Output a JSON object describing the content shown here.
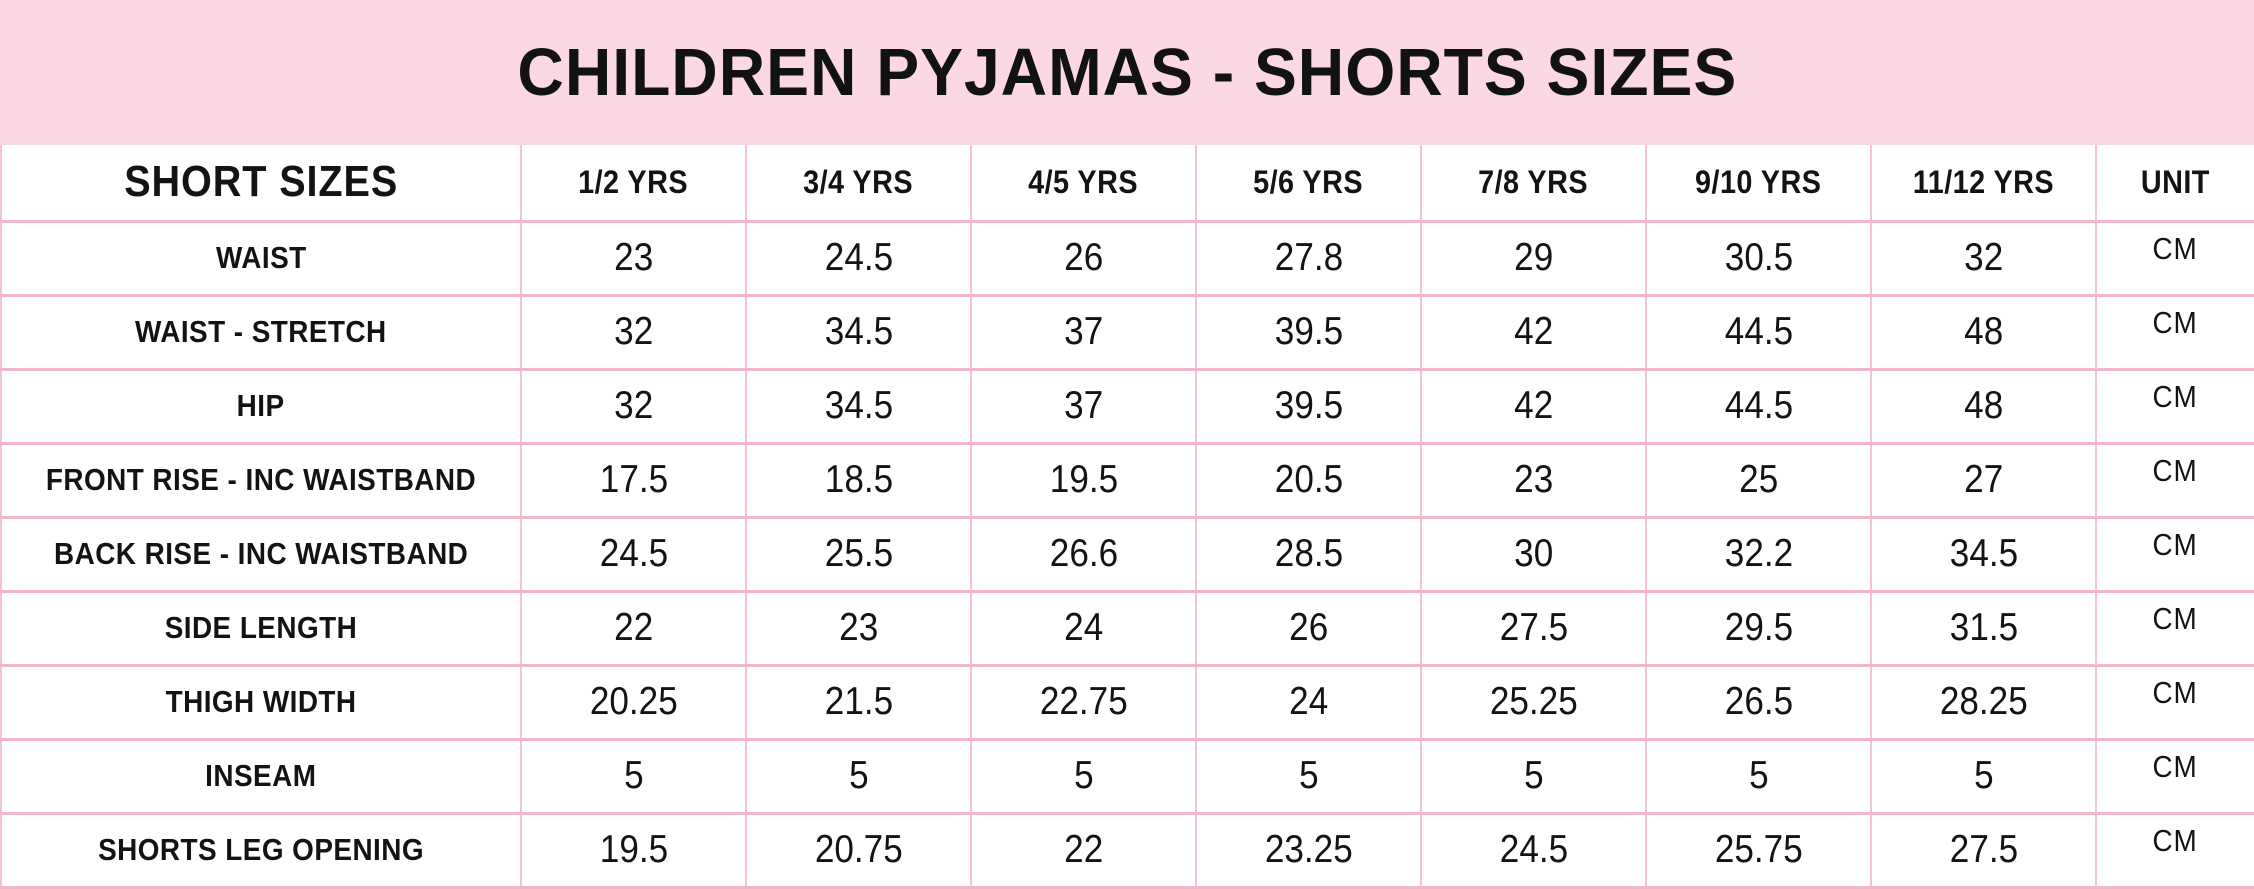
{
  "title": "CHILDREN PYJAMAS - SHORTS SIZES",
  "colors": {
    "banner_pink": "#fcd8e2",
    "grid_pink": "#f4bcd0",
    "text": "#131313",
    "background": "#ffffff"
  },
  "table": {
    "columns": [
      "SHORT SIZES",
      "1/2 YRS",
      "3/4 YRS",
      "4/5 YRS",
      "5/6 YRS",
      "7/8 YRS",
      "9/10 YRS",
      "11/12 YRS",
      "UNIT"
    ],
    "rows": [
      {
        "label": "WAIST",
        "values": [
          "23",
          "24.5",
          "26",
          "27.8",
          "29",
          "30.5",
          "32"
        ],
        "unit": "CM"
      },
      {
        "label": "WAIST - STRETCH",
        "values": [
          "32",
          "34.5",
          "37",
          "39.5",
          "42",
          "44.5",
          "48"
        ],
        "unit": "CM"
      },
      {
        "label": "HIP",
        "values": [
          "32",
          "34.5",
          "37",
          "39.5",
          "42",
          "44.5",
          "48"
        ],
        "unit": "CM"
      },
      {
        "label": "FRONT RISE - INC WAISTBAND",
        "values": [
          "17.5",
          "18.5",
          "19.5",
          "20.5",
          "23",
          "25",
          "27"
        ],
        "unit": "CM"
      },
      {
        "label": "BACK RISE - INC WAISTBAND",
        "values": [
          "24.5",
          "25.5",
          "26.6",
          "28.5",
          "30",
          "32.2",
          "34.5"
        ],
        "unit": "CM"
      },
      {
        "label": "SIDE LENGTH",
        "values": [
          "22",
          "23",
          "24",
          "26",
          "27.5",
          "29.5",
          "31.5"
        ],
        "unit": "CM"
      },
      {
        "label": "THIGH WIDTH",
        "values": [
          "20.25",
          "21.5",
          "22.75",
          "24",
          "25.25",
          "26.5",
          "28.25"
        ],
        "unit": "CM"
      },
      {
        "label": "INSEAM",
        "values": [
          "5",
          "5",
          "5",
          "5",
          "5",
          "5",
          "5"
        ],
        "unit": "CM"
      },
      {
        "label": "SHORTS LEG OPENING",
        "values": [
          "19.5",
          "20.75",
          "22",
          "23.25",
          "24.5",
          "25.75",
          "27.5"
        ],
        "unit": "CM"
      }
    ]
  },
  "chart_data": {
    "type": "table",
    "title": "CHILDREN PYJAMAS - SHORTS SIZES",
    "columns": [
      "SHORT SIZES",
      "1/2 YRS",
      "3/4 YRS",
      "4/5 YRS",
      "5/6 YRS",
      "7/8 YRS",
      "9/10 YRS",
      "11/12 YRS",
      "UNIT"
    ],
    "rows": [
      [
        "WAIST",
        23,
        24.5,
        26,
        27.8,
        29,
        30.5,
        32,
        "CM"
      ],
      [
        "WAIST - STRETCH",
        32,
        34.5,
        37,
        39.5,
        42,
        44.5,
        48,
        "CM"
      ],
      [
        "HIP",
        32,
        34.5,
        37,
        39.5,
        42,
        44.5,
        48,
        "CM"
      ],
      [
        "FRONT RISE - INC WAISTBAND",
        17.5,
        18.5,
        19.5,
        20.5,
        23,
        25,
        27,
        "CM"
      ],
      [
        "BACK RISE - INC WAISTBAND",
        24.5,
        25.5,
        26.6,
        28.5,
        30,
        32.2,
        34.5,
        "CM"
      ],
      [
        "SIDE LENGTH",
        22,
        23,
        24,
        26,
        27.5,
        29.5,
        31.5,
        "CM"
      ],
      [
        "THIGH WIDTH",
        20.25,
        21.5,
        22.75,
        24,
        25.25,
        26.5,
        28.25,
        "CM"
      ],
      [
        "INSEAM",
        5,
        5,
        5,
        5,
        5,
        5,
        5,
        "CM"
      ],
      [
        "SHORTS LEG OPENING",
        19.5,
        20.75,
        22,
        23.25,
        24.5,
        25.75,
        27.5,
        "CM"
      ]
    ],
    "units": "CM",
    "layout_hints": {
      "header_banner_color": "#fcd8e2",
      "grid": "on",
      "grid_color": "#f4bcd0"
    }
  }
}
